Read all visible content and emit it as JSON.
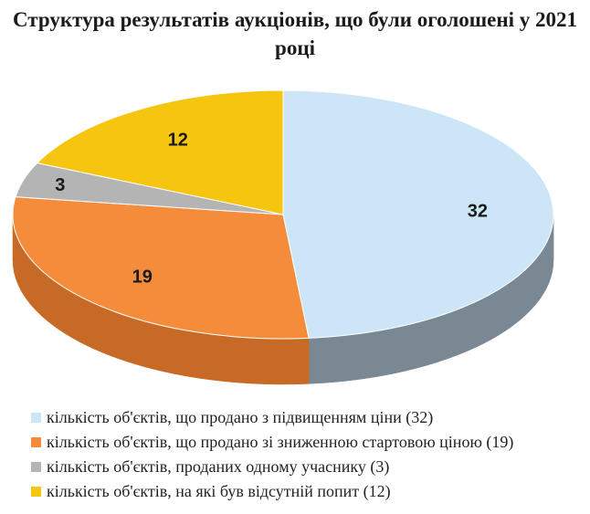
{
  "title": "Структура результатів аукціонів, що були оголошені у 2021 році",
  "chart_data": {
    "type": "pie",
    "title": "Структура результатів аукціонів, що були оголошені у 2021 році",
    "style": "3d",
    "legend_position": "bottom",
    "slices": [
      {
        "label": "кількість об'єктів, що продано з підвищенням ціни (32)",
        "value": 32,
        "color": "#cde6f7",
        "side_color": "#7a8894"
      },
      {
        "label": "кількість об'єктів, що продано зі зниженною стартовою ціною (19)",
        "value": 19,
        "color": "#f48c3c",
        "side_color": "#c76a25"
      },
      {
        "label": "кількість об'єктів, проданих одному учаснику (3)",
        "value": 3,
        "color": "#b4b4b4",
        "side_color": "#8a8a8a"
      },
      {
        "label": "кількість об'єктів, на які був відсутній попит (12)",
        "value": 12,
        "color": "#f6c50f",
        "side_color": "#c99e08"
      }
    ]
  }
}
